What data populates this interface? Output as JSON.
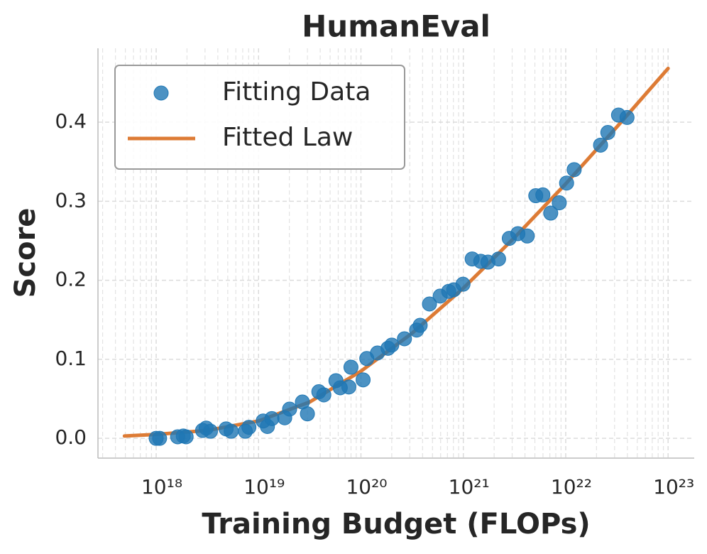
{
  "chart_data": {
    "type": "scatter",
    "title": "HumanEval",
    "xlabel": "Training Budget (FLOPs)",
    "ylabel": "Score",
    "xscale": "log",
    "grid": true,
    "legend": "upper left",
    "xlim": [
      2.7e+17,
      1.8e+23
    ],
    "ylim": [
      -0.025,
      0.4935
    ],
    "xticks": [
      {
        "value": 1e+18,
        "label": "10¹⁸"
      },
      {
        "value": 1e+19,
        "label": "10¹⁹"
      },
      {
        "value": 1e+20,
        "label": "10²⁰"
      },
      {
        "value": 1e+21,
        "label": "10²¹"
      },
      {
        "value": 1e+22,
        "label": "10²²"
      },
      {
        "value": 1e+23,
        "label": "10²³"
      }
    ],
    "xminorticks": [
      3e+17,
      4e+17,
      5e+17,
      6e+17,
      7e+17,
      8e+17,
      9e+17,
      2e+18,
      3e+18,
      4e+18,
      5e+18,
      6e+18,
      7e+18,
      8e+18,
      9e+18,
      2e+19,
      3e+19,
      4e+19,
      5e+19,
      6e+19,
      7e+19,
      8e+19,
      9e+19,
      2e+20,
      3e+20,
      4e+20,
      5e+20,
      6e+20,
      7e+20,
      8e+20,
      9e+20,
      2e+21,
      3e+21,
      4e+21,
      5e+21,
      6e+21,
      7e+21,
      8e+21,
      9e+21,
      2e+22,
      3e+22,
      4e+22,
      5e+22,
      6e+22,
      7e+22,
      8e+22,
      9e+22
    ],
    "yticks": [
      {
        "value": 0,
        "label": "0.0"
      },
      0.1,
      0.2,
      0.3,
      0.4
    ],
    "series": [
      {
        "name": "Fitting Data",
        "type": "scatter",
        "color": "#1f77b4",
        "x": [
          1e+18,
          1.08e+18,
          1.62e+18,
          1.84e+18,
          1.96e+18,
          2.84e+18,
          3.08e+18,
          3.39e+18,
          4.82e+18,
          5.4e+18,
          7.43e+18,
          8.05e+18,
          1.11e+19,
          1.22e+19,
          1.35e+19,
          1.8e+19,
          2.01e+19,
          2.68e+19,
          3e+19,
          3.88e+19,
          4.34e+19,
          5.7e+19,
          6.28e+19,
          7.62e+19,
          7.99e+19,
          1.05e+20,
          1.14e+20,
          1.45e+20,
          1.84e+20,
          2e+20,
          2.66e+20,
          3.5e+20,
          3.79e+20,
          4.67e+20,
          5.94e+20,
          7.2e+20,
          8.06e+20,
          9.93e+20,
          1.22e+21,
          1.48e+21,
          1.74e+21,
          2.21e+21,
          2.81e+21,
          3.41e+21,
          4.21e+21,
          5.1e+21,
          5.98e+21,
          7.14e+21,
          8.65e+21,
          1.02e+22,
          1.21e+22,
          2.19e+22,
          2.58e+22,
          3.28e+22,
          3.97e+22
        ],
        "values": [
          0.0,
          0.0,
          0.002,
          0.003,
          0.002,
          0.01,
          0.013,
          0.009,
          0.012,
          0.009,
          0.009,
          0.014,
          0.022,
          0.015,
          0.025,
          0.026,
          0.037,
          0.046,
          0.031,
          0.059,
          0.055,
          0.073,
          0.064,
          0.065,
          0.09,
          0.074,
          0.101,
          0.108,
          0.114,
          0.118,
          0.126,
          0.137,
          0.143,
          0.17,
          0.18,
          0.186,
          0.188,
          0.195,
          0.227,
          0.224,
          0.223,
          0.227,
          0.253,
          0.259,
          0.256,
          0.307,
          0.308,
          0.285,
          0.298,
          0.323,
          0.34,
          0.371,
          0.387,
          0.409,
          0.406
        ]
      },
      {
        "name": "Fitted Law",
        "type": "line",
        "color": "#dd7b35",
        "x": [
          4.9e+17,
          1e+18,
          3.16e+18,
          1e+19,
          3.16e+19,
          1e+20,
          3.16e+20,
          1e+21,
          3.16e+21,
          1e+22,
          3.16e+22,
          1e+23
        ],
        "values": [
          0.003,
          0.005,
          0.01,
          0.022,
          0.046,
          0.085,
          0.133,
          0.19,
          0.254,
          0.322,
          0.394,
          0.468
        ]
      }
    ]
  }
}
